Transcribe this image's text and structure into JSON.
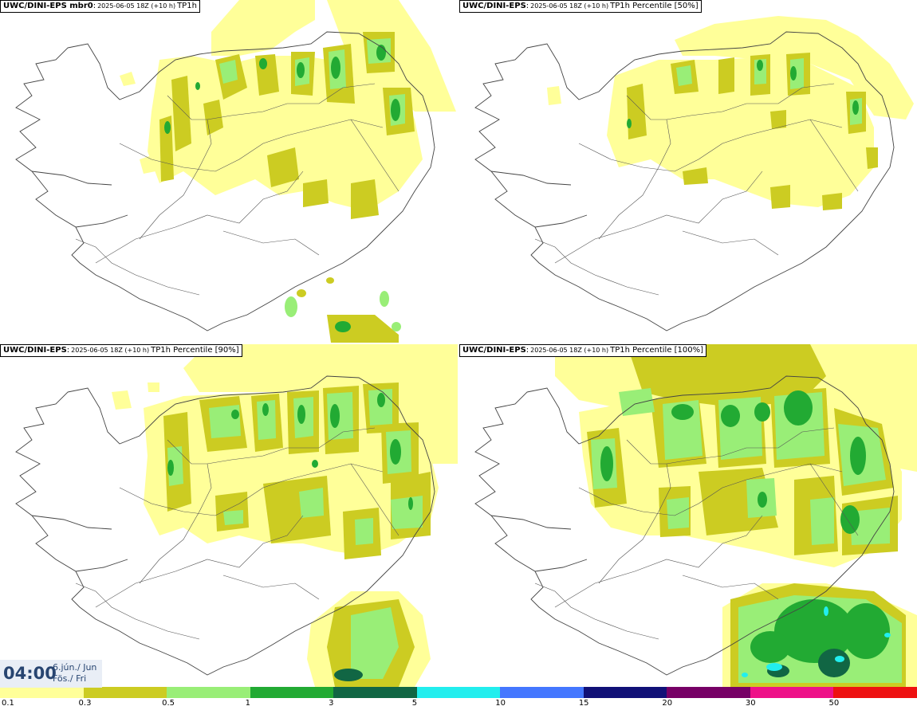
{
  "panels": [
    {
      "model": "UWC/DINI-EPS mbr0",
      "run": "2025-06-05 18Z (+10 h)",
      "field": "TP1h"
    },
    {
      "model": "UWC/DINI-EPS",
      "run": "2025-06-05 18Z (+10 h)",
      "field": "TP1h Percentile [50%]"
    },
    {
      "model": "UWC/DINI-EPS",
      "run": "2025-06-05 18Z (+10 h)",
      "field": "TP1h Percentile [90%]"
    },
    {
      "model": "UWC/DINI-EPS",
      "run": "2025-06-05 18Z (+10 h)",
      "field": "TP1h Percentile [100%]"
    }
  ],
  "valid_time": {
    "time": "04:00",
    "date_line1": "6.jún./ Jun",
    "date_line2": "Fös./ Fri"
  },
  "legend": {
    "colors": [
      "#ffff99",
      "#cccc22",
      "#99ee77",
      "#22aa33",
      "#116644",
      "#22eeee",
      "#4477ff",
      "#111177",
      "#770066",
      "#ee1188",
      "#ee1111"
    ],
    "tick_labels": [
      "0.1",
      "0.3",
      "0.5",
      "1",
      "3",
      "5",
      "10",
      "15",
      "20",
      "30",
      "50"
    ]
  }
}
